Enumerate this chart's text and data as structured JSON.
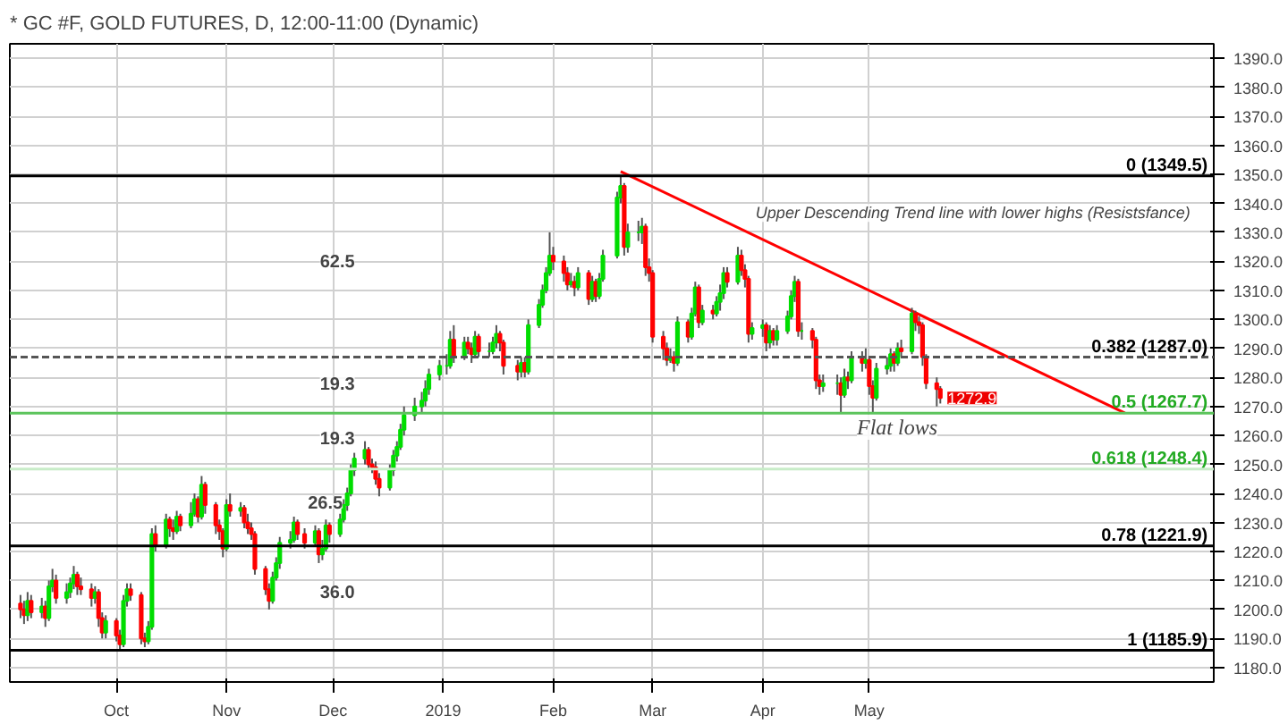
{
  "chart_data": {
    "type": "candlestick",
    "title": "* GC #F, GOLD FUTURES, D, 12:00-11:00 (Dynamic)",
    "x": [
      "2018-09-04",
      "2018-09-05",
      "2018-09-06",
      "2018-09-07",
      "2018-09-10",
      "2018-09-11",
      "2018-09-12",
      "2018-09-13",
      "2018-09-14",
      "2018-09-17",
      "2018-09-18",
      "2018-09-19",
      "2018-09-20",
      "2018-09-21",
      "2018-09-24",
      "2018-09-25",
      "2018-09-26",
      "2018-09-27",
      "2018-09-28",
      "2018-10-01",
      "2018-10-02",
      "2018-10-03",
      "2018-10-04",
      "2018-10-05",
      "2018-10-08",
      "2018-10-09",
      "2018-10-10",
      "2018-10-11",
      "2018-10-12",
      "2018-10-15",
      "2018-10-16",
      "2018-10-17",
      "2018-10-18",
      "2018-10-19",
      "2018-10-22",
      "2018-10-23",
      "2018-10-24",
      "2018-10-25",
      "2018-10-26",
      "2018-10-29",
      "2018-10-30",
      "2018-10-31",
      "2018-11-01",
      "2018-11-02",
      "2018-11-05",
      "2018-11-06",
      "2018-11-07",
      "2018-11-08",
      "2018-11-09",
      "2018-11-12",
      "2018-11-13",
      "2018-11-14",
      "2018-11-15",
      "2018-11-16",
      "2018-11-19",
      "2018-11-20",
      "2018-11-21",
      "2018-11-23",
      "2018-11-26",
      "2018-11-27",
      "2018-11-28",
      "2018-11-29",
      "2018-11-30",
      "2018-12-03",
      "2018-12-04",
      "2018-12-05",
      "2018-12-06",
      "2018-12-07",
      "2018-12-10",
      "2018-12-11",
      "2018-12-12",
      "2018-12-13",
      "2018-12-14",
      "2018-12-17",
      "2018-12-18",
      "2018-12-19",
      "2018-12-20",
      "2018-12-21",
      "2018-12-24",
      "2018-12-26",
      "2018-12-27",
      "2018-12-28",
      "2018-12-31",
      "2019-01-02",
      "2019-01-03",
      "2019-01-04",
      "2019-01-07",
      "2019-01-08",
      "2019-01-09",
      "2019-01-10",
      "2019-01-11",
      "2019-01-14",
      "2019-01-15",
      "2019-01-16",
      "2019-01-17",
      "2019-01-18",
      "2019-01-22",
      "2019-01-23",
      "2019-01-24",
      "2019-01-25",
      "2019-01-28",
      "2019-01-29",
      "2019-01-30",
      "2019-01-31",
      "2019-02-01",
      "2019-02-04",
      "2019-02-05",
      "2019-02-06",
      "2019-02-07",
      "2019-02-08",
      "2019-02-11",
      "2019-02-12",
      "2019-02-13",
      "2019-02-14",
      "2019-02-15",
      "2019-02-19",
      "2019-02-20",
      "2019-02-21",
      "2019-02-22",
      "2019-02-25",
      "2019-02-26",
      "2019-02-27",
      "2019-02-28",
      "2019-03-01",
      "2019-03-04",
      "2019-03-05",
      "2019-03-06",
      "2019-03-07",
      "2019-03-08",
      "2019-03-11",
      "2019-03-12",
      "2019-03-13",
      "2019-03-14",
      "2019-03-15",
      "2019-03-18",
      "2019-03-19",
      "2019-03-20",
      "2019-03-21",
      "2019-03-22",
      "2019-03-25",
      "2019-03-26",
      "2019-03-27",
      "2019-03-28",
      "2019-03-29",
      "2019-04-01",
      "2019-04-02",
      "2019-04-03",
      "2019-04-04",
      "2019-04-05",
      "2019-04-08",
      "2019-04-09",
      "2019-04-10",
      "2019-04-11",
      "2019-04-12",
      "2019-04-15",
      "2019-04-16",
      "2019-04-17",
      "2019-04-18",
      "2019-04-22",
      "2019-04-23",
      "2019-04-24",
      "2019-04-25",
      "2019-04-26",
      "2019-04-29",
      "2019-04-30",
      "2019-05-01",
      "2019-05-02",
      "2019-05-03",
      "2019-05-06",
      "2019-05-07",
      "2019-05-08",
      "2019-05-09",
      "2019-05-10",
      "2019-05-13",
      "2019-05-14",
      "2019-05-15",
      "2019-05-16",
      "2019-05-17",
      "2019-05-20",
      "2019-05-21"
    ],
    "ohlc": [
      [
        1202,
        1205,
        1197,
        1200
      ],
      [
        1200,
        1203,
        1195,
        1198
      ],
      [
        1198,
        1206,
        1196,
        1203
      ],
      [
        1203,
        1205,
        1197,
        1199
      ],
      [
        1199,
        1204,
        1197,
        1201
      ],
      [
        1201,
        1203,
        1194,
        1197
      ],
      [
        1197,
        1210,
        1196,
        1208
      ],
      [
        1208,
        1214,
        1206,
        1210
      ],
      [
        1210,
        1212,
        1202,
        1204
      ],
      [
        1204,
        1209,
        1202,
        1206
      ],
      [
        1206,
        1211,
        1204,
        1209
      ],
      [
        1209,
        1215,
        1207,
        1212
      ],
      [
        1212,
        1213,
        1205,
        1208
      ],
      [
        1208,
        1211,
        1205,
        1207
      ],
      [
        1207,
        1209,
        1201,
        1204
      ],
      [
        1204,
        1208,
        1202,
        1206
      ],
      [
        1206,
        1207,
        1194,
        1197
      ],
      [
        1197,
        1199,
        1190,
        1192
      ],
      [
        1192,
        1198,
        1190,
        1196
      ],
      [
        1196,
        1197,
        1189,
        1191
      ],
      [
        1191,
        1193,
        1186,
        1188
      ],
      [
        1188,
        1205,
        1187,
        1203
      ],
      [
        1203,
        1209,
        1201,
        1207
      ],
      [
        1207,
        1209,
        1203,
        1205
      ],
      [
        1205,
        1206,
        1188,
        1190
      ],
      [
        1190,
        1192,
        1187,
        1189
      ],
      [
        1189,
        1196,
        1188,
        1194
      ],
      [
        1194,
        1228,
        1193,
        1226
      ],
      [
        1226,
        1229,
        1220,
        1222
      ],
      [
        1222,
        1233,
        1221,
        1231
      ],
      [
        1231,
        1232,
        1225,
        1228
      ],
      [
        1228,
        1231,
        1224,
        1227
      ],
      [
        1227,
        1234,
        1226,
        1232
      ],
      [
        1232,
        1233,
        1227,
        1229
      ],
      [
        1229,
        1237,
        1228,
        1233
      ],
      [
        1233,
        1240,
        1232,
        1238
      ],
      [
        1238,
        1239,
        1230,
        1232
      ],
      [
        1232,
        1246,
        1231,
        1243
      ],
      [
        1243,
        1244,
        1233,
        1236
      ],
      [
        1236,
        1237,
        1226,
        1229
      ],
      [
        1229,
        1231,
        1224,
        1227
      ],
      [
        1227,
        1228,
        1218,
        1221
      ],
      [
        1221,
        1238,
        1220,
        1236
      ],
      [
        1236,
        1240,
        1232,
        1234
      ],
      [
        1234,
        1237,
        1232,
        1235
      ],
      [
        1235,
        1236,
        1228,
        1230
      ],
      [
        1230,
        1233,
        1226,
        1228
      ],
      [
        1228,
        1230,
        1224,
        1226
      ],
      [
        1226,
        1227,
        1212,
        1214
      ],
      [
        1214,
        1215,
        1205,
        1207
      ],
      [
        1207,
        1209,
        1200,
        1203
      ],
      [
        1203,
        1213,
        1202,
        1211
      ],
      [
        1211,
        1218,
        1210,
        1216
      ],
      [
        1216,
        1225,
        1214,
        1223
      ],
      [
        1223,
        1227,
        1221,
        1224
      ],
      [
        1224,
        1232,
        1223,
        1230
      ],
      [
        1230,
        1231,
        1224,
        1226
      ],
      [
        1226,
        1228,
        1221,
        1223
      ],
      [
        1223,
        1229,
        1222,
        1227
      ],
      [
        1227,
        1228,
        1216,
        1219
      ],
      [
        1219,
        1224,
        1217,
        1221
      ],
      [
        1221,
        1231,
        1220,
        1229
      ],
      [
        1229,
        1230,
        1223,
        1226
      ],
      [
        1226,
        1233,
        1225,
        1231
      ],
      [
        1231,
        1238,
        1230,
        1236
      ],
      [
        1236,
        1242,
        1234,
        1240
      ],
      [
        1240,
        1250,
        1239,
        1248
      ],
      [
        1248,
        1254,
        1246,
        1252
      ],
      [
        1252,
        1258,
        1250,
        1255
      ],
      [
        1255,
        1256,
        1248,
        1250
      ],
      [
        1250,
        1252,
        1247,
        1249
      ],
      [
        1249,
        1251,
        1243,
        1245
      ],
      [
        1245,
        1247,
        1239,
        1242
      ],
      [
        1242,
        1250,
        1241,
        1248
      ],
      [
        1248,
        1255,
        1246,
        1253
      ],
      [
        1253,
        1258,
        1251,
        1256
      ],
      [
        1256,
        1264,
        1255,
        1262
      ],
      [
        1262,
        1270,
        1260,
        1267
      ],
      [
        1267,
        1273,
        1265,
        1270
      ],
      [
        1270,
        1275,
        1268,
        1272
      ],
      [
        1272,
        1279,
        1270,
        1276
      ],
      [
        1276,
        1283,
        1274,
        1281
      ],
      [
        1281,
        1286,
        1279,
        1284
      ],
      [
        1284,
        1288,
        1281,
        1284
      ],
      [
        1284,
        1296,
        1283,
        1293
      ],
      [
        1293,
        1298,
        1285,
        1287
      ],
      [
        1287,
        1294,
        1286,
        1292
      ],
      [
        1292,
        1294,
        1288,
        1290
      ],
      [
        1290,
        1292,
        1285,
        1288
      ],
      [
        1288,
        1296,
        1287,
        1294
      ],
      [
        1294,
        1295,
        1287,
        1289
      ],
      [
        1289,
        1292,
        1287,
        1289
      ],
      [
        1289,
        1294,
        1288,
        1292
      ],
      [
        1292,
        1298,
        1290,
        1295
      ],
      [
        1295,
        1296,
        1289,
        1292
      ],
      [
        1292,
        1293,
        1281,
        1284
      ],
      [
        1284,
        1286,
        1279,
        1282
      ],
      [
        1282,
        1287,
        1280,
        1285
      ],
      [
        1285,
        1287,
        1280,
        1282
      ],
      [
        1282,
        1300,
        1281,
        1298
      ],
      [
        1298,
        1307,
        1297,
        1305
      ],
      [
        1305,
        1312,
        1304,
        1310
      ],
      [
        1310,
        1318,
        1309,
        1316
      ],
      [
        1316,
        1330,
        1315,
        1322
      ],
      [
        1322,
        1325,
        1317,
        1320
      ],
      [
        1320,
        1322,
        1313,
        1316
      ],
      [
        1316,
        1318,
        1310,
        1312
      ],
      [
        1312,
        1316,
        1311,
        1313
      ],
      [
        1313,
        1315,
        1308,
        1311
      ],
      [
        1311,
        1318,
        1310,
        1316
      ],
      [
        1316,
        1317,
        1305,
        1307
      ],
      [
        1307,
        1315,
        1306,
        1313
      ],
      [
        1313,
        1314,
        1306,
        1308
      ],
      [
        1308,
        1316,
        1307,
        1314
      ],
      [
        1314,
        1324,
        1313,
        1322
      ],
      [
        1322,
        1344,
        1321,
        1342
      ],
      [
        1342,
        1349.5,
        1340,
        1346
      ],
      [
        1346,
        1347,
        1322,
        1325
      ],
      [
        1325,
        1333,
        1323,
        1330
      ],
      [
        1330,
        1334,
        1327,
        1330
      ],
      [
        1330,
        1335,
        1326,
        1332
      ],
      [
        1332,
        1333,
        1315,
        1318
      ],
      [
        1318,
        1321,
        1313,
        1316
      ],
      [
        1316,
        1317,
        1292,
        1294
      ],
      [
        1294,
        1296,
        1286,
        1290
      ],
      [
        1290,
        1292,
        1284,
        1286
      ],
      [
        1286,
        1290,
        1285,
        1287
      ],
      [
        1287,
        1289,
        1282,
        1285
      ],
      [
        1285,
        1301,
        1284,
        1299
      ],
      [
        1299,
        1300,
        1292,
        1294
      ],
      [
        1294,
        1304,
        1293,
        1302
      ],
      [
        1302,
        1313,
        1301,
        1311
      ],
      [
        1311,
        1312,
        1297,
        1299
      ],
      [
        1299,
        1305,
        1298,
        1303
      ],
      [
        1303,
        1305,
        1300,
        1302
      ],
      [
        1302,
        1308,
        1301,
        1306
      ],
      [
        1306,
        1312,
        1303,
        1309
      ],
      [
        1309,
        1318,
        1307,
        1316
      ],
      [
        1316,
        1318,
        1311,
        1313
      ],
      [
        1313,
        1325,
        1312,
        1322
      ],
      [
        1322,
        1324,
        1315,
        1317
      ],
      [
        1317,
        1319,
        1311,
        1314
      ],
      [
        1314,
        1315,
        1292,
        1295
      ],
      [
        1295,
        1299,
        1293,
        1297
      ],
      [
        1297,
        1300,
        1294,
        1298
      ],
      [
        1298,
        1299,
        1289,
        1292
      ],
      [
        1292,
        1298,
        1290,
        1296
      ],
      [
        1296,
        1297,
        1291,
        1293
      ],
      [
        1293,
        1298,
        1291,
        1296
      ],
      [
        1296,
        1303,
        1295,
        1301
      ],
      [
        1301,
        1310,
        1300,
        1308
      ],
      [
        1308,
        1315,
        1306,
        1313
      ],
      [
        1313,
        1314,
        1294,
        1296
      ],
      [
        1296,
        1299,
        1293,
        1296
      ],
      [
        1296,
        1297,
        1290,
        1293
      ],
      [
        1293,
        1294,
        1276,
        1279
      ],
      [
        1279,
        1281,
        1274,
        1277
      ],
      [
        1277,
        1281,
        1275,
        1278
      ],
      [
        1278,
        1281,
        1274,
        1278
      ],
      [
        1278,
        1280,
        1267.7,
        1274
      ],
      [
        1274,
        1283,
        1273,
        1280
      ],
      [
        1280,
        1282,
        1276,
        1279
      ],
      [
        1279,
        1289,
        1278,
        1287
      ],
      [
        1287,
        1289,
        1282,
        1285
      ],
      [
        1285,
        1290,
        1283,
        1286
      ],
      [
        1286,
        1287,
        1274,
        1277
      ],
      [
        1277,
        1279,
        1267.7,
        1273
      ],
      [
        1273,
        1285,
        1272,
        1283
      ],
      [
        1283,
        1287,
        1281,
        1284
      ],
      [
        1284,
        1290,
        1282,
        1288
      ],
      [
        1288,
        1289,
        1282,
        1285
      ],
      [
        1285,
        1292,
        1284,
        1290
      ],
      [
        1290,
        1293,
        1287,
        1289
      ],
      [
        1289,
        1304,
        1288,
        1302
      ],
      [
        1302,
        1303,
        1296,
        1299
      ],
      [
        1299,
        1301,
        1295,
        1298
      ],
      [
        1298,
        1299,
        1284,
        1287
      ],
      [
        1287,
        1288,
        1276,
        1278
      ],
      [
        1278,
        1280,
        1270,
        1276
      ],
      [
        1276,
        1277,
        1271,
        1272.9
      ]
    ],
    "series": [
      {
        "type": "line",
        "x": [
          "2019-02-20",
          "2019-07-12"
        ],
        "values": [
          1351,
          1267.7
        ],
        "color": "#ff0000"
      }
    ],
    "ref_lines": [
      {
        "axis": "y",
        "value": 1349.5,
        "label": "0 (1349.5)",
        "color": "#000000",
        "line_style": "solid"
      },
      {
        "axis": "y",
        "value": 1287.0,
        "label": "0.382 (1287.0)",
        "color": "#555555",
        "line_style": "dashed"
      },
      {
        "axis": "y",
        "value": 1267.7,
        "label": "0.5 (1267.7)",
        "color": "#5cc45c",
        "line_style": "solid"
      },
      {
        "axis": "y",
        "value": 1248.4,
        "label": "0.618 (1248.4)",
        "color": "#c8ecc8",
        "line_style": "solid"
      },
      {
        "axis": "y",
        "value": 1221.9,
        "label": "0.78 (1221.9)",
        "color": "#000000",
        "line_style": "solid"
      },
      {
        "axis": "y",
        "value": 1185.9,
        "label": "1 (1185.9)",
        "color": "#000000",
        "line_style": "solid"
      }
    ],
    "annotations": [
      "62.5",
      "19.3",
      "19.3",
      "26.5",
      "36.0",
      "Upper Descending Trend line with lower highs (Resistsfance)",
      "Flat lows",
      {
        "text": "1272.9",
        "x": "2019-05-21",
        "y": 1272.9
      }
    ],
    "xlim": [
      "2018-09-01",
      "2019-08-06"
    ],
    "xticks": [
      {
        "value": "2018-10-01",
        "label": "Oct"
      },
      {
        "value": "2018-11-01",
        "label": "Nov"
      },
      {
        "value": "2018-12-01",
        "label": "Dec"
      },
      {
        "value": "2019-01-01",
        "label": "2019"
      },
      {
        "value": "2019-02-01",
        "label": "Feb"
      },
      {
        "value": "2019-03-01",
        "label": "Mar"
      },
      {
        "value": "2019-04-01",
        "label": "Apr"
      },
      {
        "value": "2019-05-01",
        "label": "May"
      }
    ],
    "ylim": [
      1175,
      1395
    ],
    "yticks": [
      {
        "value": 1180,
        "label": "1180.0"
      },
      {
        "value": 1190,
        "label": "1190.0"
      },
      {
        "value": 1200,
        "label": "1200.0"
      },
      {
        "value": 1210,
        "label": "1210.0"
      },
      {
        "value": 1220,
        "label": "1220.0"
      },
      {
        "value": 1230,
        "label": "1230.0"
      },
      {
        "value": 1240,
        "label": "1240.0"
      },
      {
        "value": 1250,
        "label": "1250.0"
      },
      {
        "value": 1260,
        "label": "1260.0"
      },
      {
        "value": 1270,
        "label": "1270.0"
      },
      {
        "value": 1280,
        "label": "1280.0"
      },
      {
        "value": 1290,
        "label": "1290.0"
      },
      {
        "value": 1300,
        "label": "1300.0"
      },
      {
        "value": 1310,
        "label": "1310.0"
      },
      {
        "value": 1320,
        "label": "1320.0"
      },
      {
        "value": 1330,
        "label": "1330.0"
      },
      {
        "value": 1340,
        "label": "1340.0"
      },
      {
        "value": 1350,
        "label": "1350.0"
      },
      {
        "value": 1360,
        "label": "1360.0"
      },
      {
        "value": 1370,
        "label": "1370.0"
      },
      {
        "value": 1380,
        "label": "1380.0"
      },
      {
        "value": 1390,
        "label": "1390.0"
      }
    ],
    "grid": true
  }
}
